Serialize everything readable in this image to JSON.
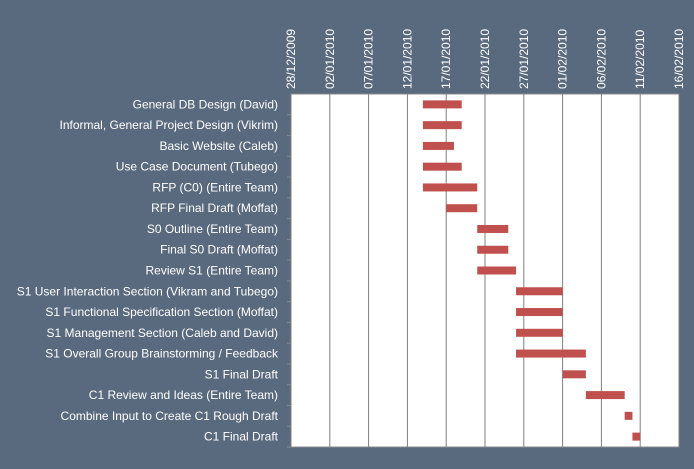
{
  "chart_data": {
    "type": "gantt",
    "x_axis": {
      "type": "date",
      "min": "2009-12-28",
      "max": "2010-02-16",
      "tick_labels": [
        "28/12/2009",
        "02/01/2010",
        "07/01/2010",
        "12/01/2010",
        "17/01/2010",
        "22/01/2010",
        "27/01/2010",
        "01/02/2010",
        "06/02/2010",
        "11/02/2010",
        "16/02/2010"
      ],
      "position": "top",
      "gridlines": true
    },
    "tasks": [
      {
        "name": "General DB Design (David)",
        "start": "2010-01-14",
        "end": "2010-01-19"
      },
      {
        "name": "Informal, General Project Design (Vikrim)",
        "start": "2010-01-14",
        "end": "2010-01-19"
      },
      {
        "name": "Basic Website (Caleb)",
        "start": "2010-01-14",
        "end": "2010-01-18"
      },
      {
        "name": "Use Case Document (Tubego)",
        "start": "2010-01-14",
        "end": "2010-01-19"
      },
      {
        "name": "RFP (C0) (Entire Team)",
        "start": "2010-01-14",
        "end": "2010-01-21"
      },
      {
        "name": "RFP Final Draft (Moffat)",
        "start": "2010-01-17",
        "end": "2010-01-21"
      },
      {
        "name": "S0 Outline (Entire Team)",
        "start": "2010-01-21",
        "end": "2010-01-25"
      },
      {
        "name": "Final S0 Draft (Moffat)",
        "start": "2010-01-21",
        "end": "2010-01-25"
      },
      {
        "name": "Review S1 (Entire Team)",
        "start": "2010-01-21",
        "end": "2010-01-26"
      },
      {
        "name": "S1 User Interaction Section (Vikram and Tubego)",
        "start": "2010-01-26",
        "end": "2010-02-01"
      },
      {
        "name": "S1 Functional Specification Section (Moffat)",
        "start": "2010-01-26",
        "end": "2010-02-01"
      },
      {
        "name": "S1 Management Section (Caleb and David)",
        "start": "2010-01-26",
        "end": "2010-02-01"
      },
      {
        "name": "S1 Overall Group Brainstorming / Feedback",
        "start": "2010-01-26",
        "end": "2010-02-04"
      },
      {
        "name": "S1 Final Draft",
        "start": "2010-02-01",
        "end": "2010-02-04"
      },
      {
        "name": "C1 Review and Ideas (Entire Team)",
        "start": "2010-02-04",
        "end": "2010-02-09"
      },
      {
        "name": "Combine Input to Create C1 Rough Draft",
        "start": "2010-02-09",
        "end": "2010-02-10"
      },
      {
        "name": "C1 Final Draft",
        "start": "2010-02-10",
        "end": "2010-02-11"
      }
    ],
    "colors": {
      "background": "#596a7f",
      "plot_area": "#ffffff",
      "bar": "#c0504d",
      "gridline": "#7f7f7f",
      "text": "#ffffff"
    }
  }
}
